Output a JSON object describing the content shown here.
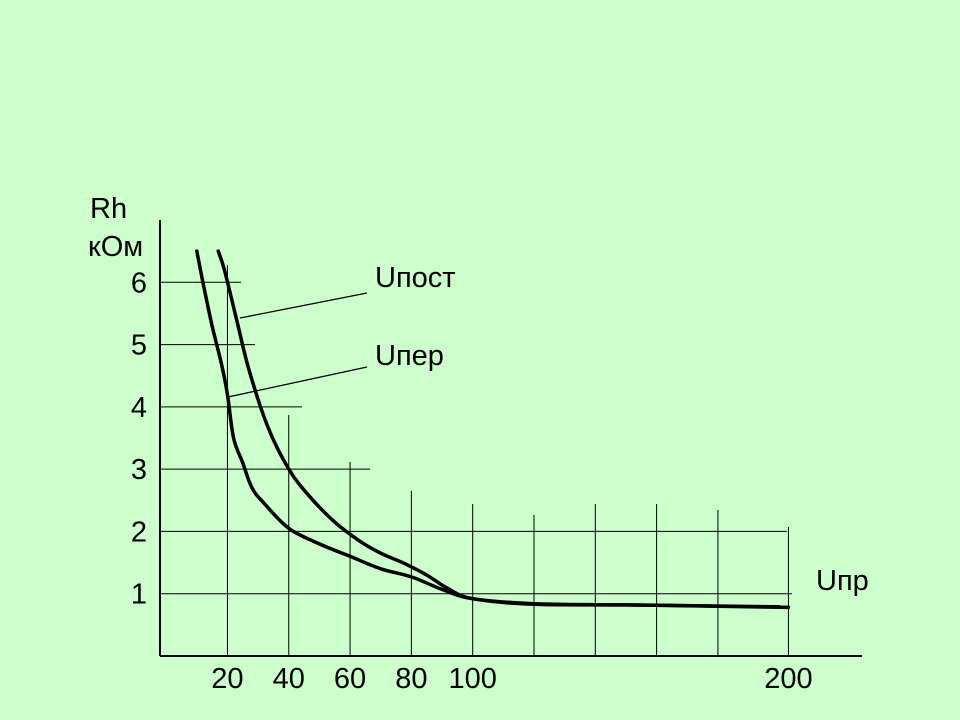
{
  "chart_data": {
    "type": "line",
    "ylabel": [
      "Rh",
      "кОм"
    ],
    "xlabel": "Uпр",
    "x_ticks": [
      "20",
      "40",
      "60",
      "80",
      "100",
      "200"
    ],
    "y_ticks": [
      "1",
      "2",
      "3",
      "4",
      "5",
      "6"
    ],
    "series": [
      {
        "name": "Uпост",
        "x": [
          17,
          19,
          23,
          27,
          33,
          40,
          47,
          55,
          63,
          70,
          78,
          85,
          92,
          100,
          120,
          150,
          180,
          203
        ],
        "y": [
          6.5,
          6.2,
          5.4,
          4.6,
          3.7,
          3.0,
          2.55,
          2.15,
          1.85,
          1.65,
          1.48,
          1.3,
          1.08,
          0.92,
          0.83,
          0.82,
          0.8,
          0.78
        ]
      },
      {
        "name": "Uпер",
        "x": [
          10,
          12,
          15,
          18,
          20,
          22,
          25,
          28,
          32,
          40,
          50,
          60,
          70,
          80,
          90,
          100,
          120,
          150,
          200
        ],
        "y": [
          6.5,
          6.0,
          5.3,
          4.7,
          4.2,
          3.5,
          3.1,
          2.7,
          2.45,
          2.05,
          1.8,
          1.6,
          1.4,
          1.27,
          1.07,
          0.92,
          0.84,
          0.82,
          0.79
        ]
      }
    ],
    "xlim": [
      -2,
      227
    ],
    "ylim": [
      0,
      7
    ],
    "grid": true
  }
}
